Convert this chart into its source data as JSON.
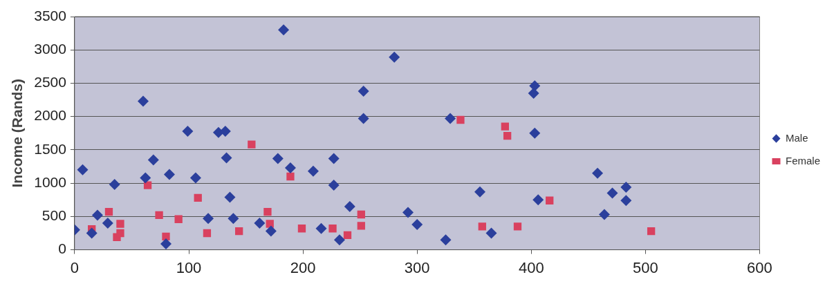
{
  "chart_data": {
    "type": "scatter",
    "ylabel": "Income (Rands)",
    "xlim": [
      0,
      600
    ],
    "xticks": [
      0,
      100,
      200,
      300,
      400,
      500,
      600
    ],
    "ylim": [
      0,
      3500
    ],
    "yticks": [
      0,
      500,
      1000,
      1500,
      2000,
      2500,
      3000,
      3500
    ],
    "grid": "y",
    "legend": "right",
    "series": [
      {
        "name": "Male",
        "color": "#2b3f9c",
        "marker": "diamond",
        "x": [
          0,
          7,
          15,
          20,
          29,
          35,
          60,
          62,
          69,
          83,
          80,
          99,
          106,
          117,
          126,
          132,
          133,
          136,
          139,
          162,
          172,
          183,
          178,
          189,
          209,
          227,
          227,
          241,
          216,
          232,
          253,
          253,
          280,
          292,
          300,
          325,
          355,
          365,
          329,
          403,
          402,
          403,
          406,
          458,
          471,
          483,
          483,
          464
        ],
        "values": [
          300,
          1200,
          250,
          520,
          400,
          980,
          2230,
          1080,
          1350,
          1130,
          90,
          1780,
          1080,
          470,
          1760,
          1780,
          1380,
          790,
          470,
          400,
          280,
          3300,
          1370,
          1230,
          1180,
          1370,
          970,
          650,
          320,
          150,
          2380,
          1970,
          2890,
          560,
          380,
          150,
          870,
          250,
          1970,
          2460,
          2350,
          1750,
          750,
          1150,
          850,
          940,
          740,
          530
        ]
      },
      {
        "name": "Female",
        "color": "#d9415f",
        "marker": "square",
        "x": [
          15,
          30,
          40,
          37,
          40,
          64,
          74,
          91,
          80,
          108,
          116,
          144,
          155,
          169,
          171,
          189,
          199,
          226,
          239,
          251,
          251,
          338,
          357,
          377,
          379,
          388,
          416,
          505
        ],
        "values": [
          310,
          570,
          390,
          190,
          250,
          970,
          520,
          460,
          200,
          780,
          250,
          280,
          1580,
          570,
          390,
          1100,
          320,
          320,
          220,
          530,
          360,
          1950,
          350,
          1850,
          1710,
          350,
          740,
          280
        ]
      }
    ]
  }
}
